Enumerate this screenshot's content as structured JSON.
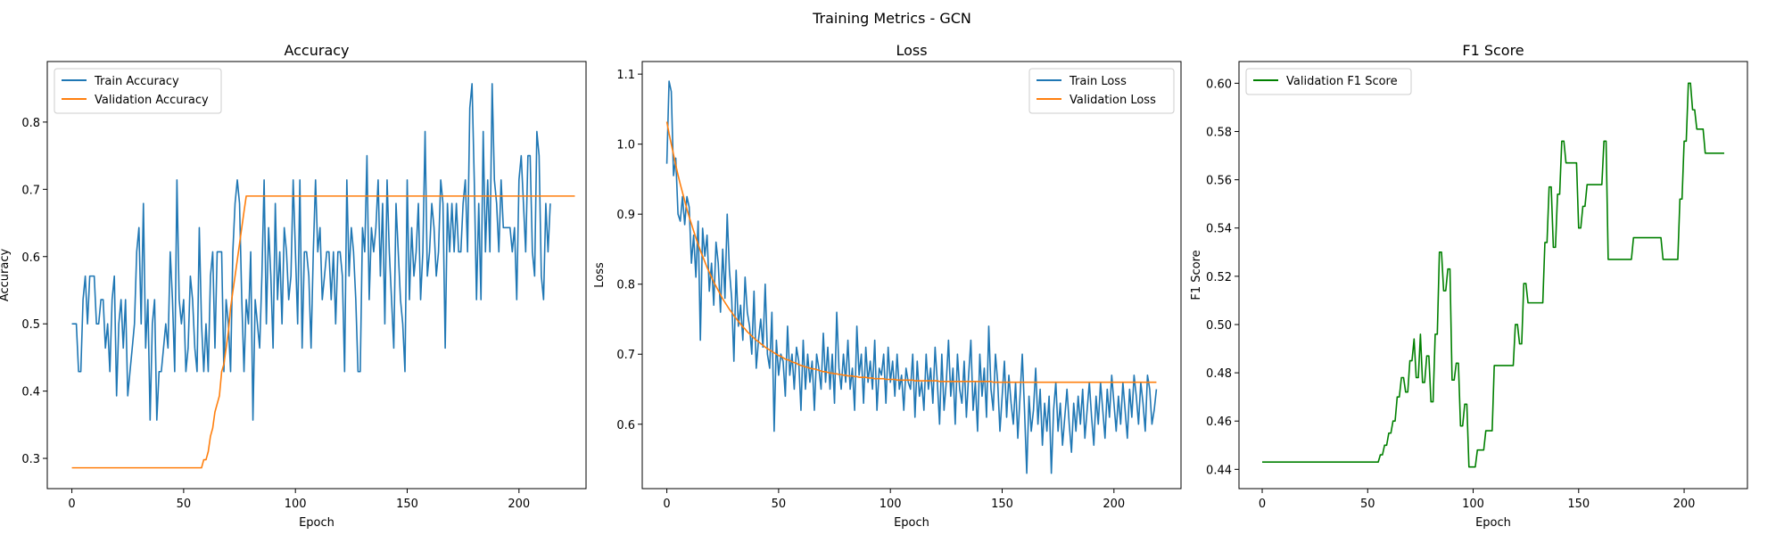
{
  "figure": {
    "suptitle": "Training Metrics - GCN"
  },
  "chart_data": [
    {
      "type": "line",
      "title": "Accuracy",
      "xlabel": "Epoch",
      "ylabel": "Accuracy",
      "xlim": [
        -11,
        230
      ],
      "ylim": [
        0.255,
        0.89
      ],
      "xticks": [
        0,
        50,
        100,
        150,
        200
      ],
      "yticks": [
        0.3,
        0.4,
        0.5,
        0.6,
        0.7,
        0.8
      ],
      "ytick_labels": [
        "0.3",
        "0.4",
        "0.5",
        "0.6",
        "0.7",
        "0.8"
      ],
      "legend": "upper-left",
      "series": [
        {
          "name": "Train Accuracy",
          "color": "#1f77b4",
          "x_start": 0,
          "values": [
            0.5,
            0.5,
            0.5,
            0.429,
            0.429,
            0.536,
            0.571,
            0.5,
            0.571,
            0.571,
            0.571,
            0.5,
            0.5,
            0.536,
            0.536,
            0.464,
            0.5,
            0.429,
            0.536,
            0.571,
            0.393,
            0.5,
            0.536,
            0.464,
            0.536,
            0.393,
            0.429,
            0.464,
            0.5,
            0.607,
            0.643,
            0.5,
            0.679,
            0.464,
            0.536,
            0.357,
            0.5,
            0.536,
            0.357,
            0.429,
            0.429,
            0.464,
            0.5,
            0.464,
            0.607,
            0.536,
            0.429,
            0.714,
            0.536,
            0.5,
            0.536,
            0.429,
            0.464,
            0.571,
            0.536,
            0.464,
            0.429,
            0.643,
            0.5,
            0.429,
            0.5,
            0.429,
            0.571,
            0.607,
            0.464,
            0.607,
            0.607,
            0.607,
            0.429,
            0.536,
            0.5,
            0.429,
            0.607,
            0.679,
            0.714,
            0.679,
            0.536,
            0.429,
            0.536,
            0.5,
            0.607,
            0.357,
            0.536,
            0.5,
            0.464,
            0.571,
            0.714,
            0.5,
            0.643,
            0.571,
            0.464,
            0.679,
            0.536,
            0.607,
            0.5,
            0.643,
            0.607,
            0.536,
            0.571,
            0.714,
            0.607,
            0.5,
            0.714,
            0.464,
            0.607,
            0.607,
            0.571,
            0.464,
            0.607,
            0.714,
            0.607,
            0.643,
            0.536,
            0.571,
            0.607,
            0.607,
            0.536,
            0.607,
            0.5,
            0.607,
            0.607,
            0.571,
            0.429,
            0.714,
            0.571,
            0.643,
            0.607,
            0.536,
            0.429,
            0.429,
            0.643,
            0.607,
            0.75,
            0.536,
            0.643,
            0.607,
            0.643,
            0.714,
            0.571,
            0.679,
            0.5,
            0.714,
            0.607,
            0.536,
            0.464,
            0.679,
            0.607,
            0.536,
            0.5,
            0.429,
            0.714,
            0.536,
            0.643,
            0.571,
            0.607,
            0.679,
            0.536,
            0.607,
            0.786,
            0.571,
            0.607,
            0.679,
            0.643,
            0.571,
            0.607,
            0.714,
            0.679,
            0.464,
            0.679,
            0.607,
            0.679,
            0.607,
            0.679,
            0.607,
            0.607,
            0.679,
            0.714,
            0.607,
            0.821,
            0.857,
            0.714,
            0.536,
            0.679,
            0.536,
            0.786,
            0.607,
            0.714,
            0.607,
            0.857,
            0.714,
            0.679,
            0.607,
            0.714,
            0.643,
            0.643,
            0.643,
            0.643,
            0.607,
            0.643,
            0.536,
            0.714,
            0.75,
            0.679,
            0.607,
            0.75,
            0.75,
            0.607,
            0.571,
            0.786,
            0.75,
            0.571,
            0.536,
            0.679,
            0.607,
            0.679
          ]
        },
        {
          "name": "Validation Accuracy",
          "color": "#ff7f0e",
          "x_start": 0,
          "values": [
            0.286,
            0.286,
            0.286,
            0.286,
            0.286,
            0.286,
            0.286,
            0.286,
            0.286,
            0.286,
            0.286,
            0.286,
            0.286,
            0.286,
            0.286,
            0.286,
            0.286,
            0.286,
            0.286,
            0.286,
            0.286,
            0.286,
            0.286,
            0.286,
            0.286,
            0.286,
            0.286,
            0.286,
            0.286,
            0.286,
            0.286,
            0.286,
            0.286,
            0.286,
            0.286,
            0.286,
            0.286,
            0.286,
            0.286,
            0.286,
            0.286,
            0.286,
            0.286,
            0.286,
            0.286,
            0.286,
            0.286,
            0.286,
            0.286,
            0.286,
            0.286,
            0.286,
            0.286,
            0.286,
            0.286,
            0.286,
            0.286,
            0.286,
            0.286,
            0.298,
            0.298,
            0.31,
            0.333,
            0.345,
            0.369,
            0.381,
            0.393,
            0.429,
            0.44,
            0.464,
            0.488,
            0.524,
            0.548,
            0.571,
            0.595,
            0.619,
            0.643,
            0.667,
            0.69,
            0.69,
            0.69,
            0.69,
            0.69,
            0.69,
            0.69,
            0.69,
            0.69,
            0.69,
            0.69,
            0.69,
            0.69,
            0.69,
            0.69,
            0.69,
            0.69,
            0.69,
            0.69,
            0.69,
            0.69,
            0.69,
            0.69,
            0.69,
            0.69,
            0.69,
            0.69,
            0.69,
            0.69,
            0.69,
            0.69,
            0.69,
            0.69,
            0.69,
            0.69,
            0.69,
            0.69,
            0.69,
            0.69,
            0.69,
            0.69,
            0.69,
            0.69,
            0.69,
            0.69,
            0.69,
            0.69,
            0.69,
            0.69,
            0.69,
            0.69,
            0.69,
            0.69,
            0.69,
            0.69,
            0.69,
            0.69,
            0.69,
            0.69,
            0.69,
            0.69,
            0.69,
            0.69,
            0.69,
            0.69,
            0.69,
            0.69,
            0.69,
            0.69,
            0.69,
            0.69,
            0.69,
            0.69,
            0.69,
            0.69,
            0.69,
            0.69,
            0.69,
            0.69,
            0.69,
            0.69,
            0.69,
            0.69,
            0.69,
            0.69,
            0.69,
            0.69,
            0.69,
            0.69,
            0.69,
            0.69,
            0.69,
            0.69,
            0.69,
            0.69,
            0.69,
            0.69,
            0.69,
            0.69,
            0.69,
            0.69,
            0.69,
            0.69,
            0.69,
            0.69,
            0.69,
            0.69,
            0.69,
            0.69,
            0.69,
            0.69,
            0.69,
            0.69,
            0.69,
            0.69,
            0.69,
            0.69,
            0.69,
            0.69,
            0.69,
            0.69,
            0.69,
            0.69,
            0.69,
            0.69,
            0.69,
            0.69,
            0.69,
            0.69,
            0.69,
            0.69,
            0.69,
            0.69,
            0.69,
            0.69,
            0.69,
            0.69,
            0.69,
            0.69,
            0.69,
            0.69,
            0.69,
            0.69,
            0.69,
            0.69,
            0.69,
            0.69,
            0.69
          ]
        }
      ]
    },
    {
      "type": "line",
      "title": "Loss",
      "xlabel": "Epoch",
      "ylabel": "Loss",
      "xlim": [
        -11,
        230
      ],
      "ylim": [
        0.508,
        1.118
      ],
      "xticks": [
        0,
        50,
        100,
        150,
        200
      ],
      "yticks": [
        0.6,
        0.7,
        0.8,
        0.9,
        1.0,
        1.1
      ],
      "ytick_labels": [
        "0.6",
        "0.7",
        "0.8",
        "0.9",
        "1.0",
        "1.1"
      ],
      "legend": "upper-right",
      "series": [
        {
          "name": "Train Loss",
          "color": "#1f77b4",
          "x_start": 0,
          "values": []
        },
        {
          "name": "Validation Loss",
          "color": "#ff7f0e",
          "x_start": 0,
          "values": []
        }
      ]
    },
    {
      "type": "line",
      "title": "F1 Score",
      "xlabel": "Epoch",
      "ylabel": "F1 Score",
      "xlim": [
        -11,
        230
      ],
      "ylim": [
        0.432,
        0.609
      ],
      "xticks": [
        0,
        50,
        100,
        150,
        200
      ],
      "yticks": [
        0.44,
        0.46,
        0.48,
        0.5,
        0.52,
        0.54,
        0.56,
        0.58,
        0.6
      ],
      "ytick_labels": [
        "0.44",
        "0.46",
        "0.48",
        "0.50",
        "0.52",
        "0.54",
        "0.56",
        "0.58",
        "0.60"
      ],
      "legend": "upper-left",
      "series": [
        {
          "name": "Validation F1 Score",
          "color": "#008000",
          "x_start": 0,
          "values": []
        }
      ]
    }
  ]
}
